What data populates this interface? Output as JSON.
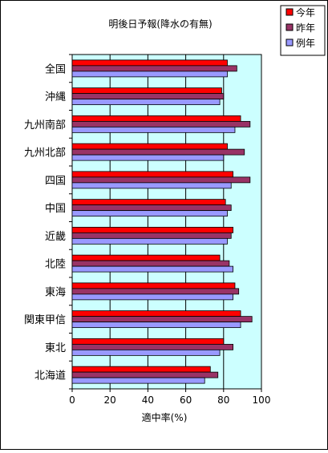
{
  "chart_data": {
    "type": "bar",
    "orientation": "horizontal",
    "title": "明後日予報(降水の有無)",
    "xlabel": "適中率(%)",
    "ylabel": "",
    "xlim": [
      0,
      100
    ],
    "xticks": [
      0,
      20,
      40,
      60,
      80,
      100
    ],
    "categories": [
      "全国",
      "沖縄",
      "九州南部",
      "九州北部",
      "四国",
      "中国",
      "近畿",
      "北陸",
      "東海",
      "関東甲信",
      "東北",
      "北海道"
    ],
    "series": [
      {
        "name": "今年",
        "color": "#ff0000",
        "values": [
          82,
          79,
          89,
          82,
          85,
          81,
          85,
          78,
          86,
          89,
          80,
          73
        ]
      },
      {
        "name": "昨年",
        "color": "#993366",
        "values": [
          87,
          80,
          94,
          91,
          94,
          84,
          84,
          83,
          88,
          95,
          85,
          77
        ]
      },
      {
        "name": "例年",
        "color": "#9999ff",
        "values": [
          82,
          78,
          86,
          80,
          84,
          82,
          82,
          85,
          85,
          89,
          78,
          70
        ]
      }
    ],
    "plot_background": "#ccffff",
    "gridlines": "vertical",
    "legend_position": "top-right"
  }
}
